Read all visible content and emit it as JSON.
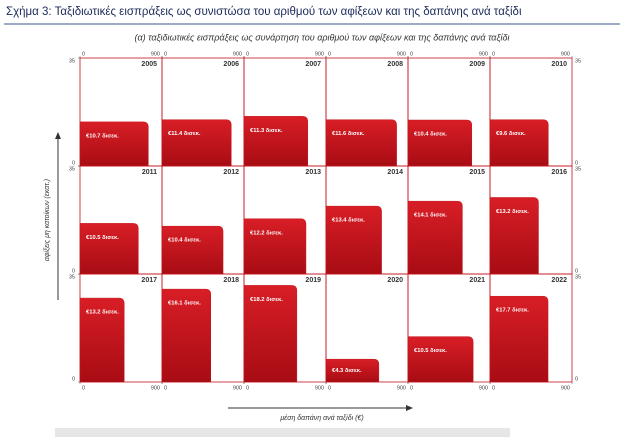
{
  "chart_data": {
    "type": "rect",
    "title": "Σχήμα 3: Ταξιδιωτικές εισπράξεις ως συνιστώσα του αριθμού των αφίξεων και της δαπάνης ανά ταξίδι",
    "subtitle": "(α) ταξιδιωτικές εισπράξεις ως συνάρτηση του αριθμού των αφίξεων και της δαπάνης ανά ταξίδι",
    "x_label": "μέση δαπάνη ανά ταξίδι (€)",
    "y_label": "αφίξεις μη κατοίκων (εκατ.)",
    "xlim": [
      0,
      900
    ],
    "ylim": [
      0,
      35
    ],
    "xticks": [
      0,
      900
    ],
    "yticks": [
      0,
      35
    ],
    "color": "#c4141c",
    "categories": [
      "2005",
      "2006",
      "2007",
      "2008",
      "2009",
      "2010",
      "2011",
      "2012",
      "2013",
      "2014",
      "2015",
      "2016",
      "2017",
      "2018",
      "2019",
      "2020",
      "2021",
      "2022"
    ],
    "x": [
      750,
      760,
      700,
      775,
      700,
      640,
      640,
      670,
      680,
      610,
      597,
      532,
      485,
      535,
      580,
      580,
      715,
      637
    ],
    "values": [
      14.3,
      15.0,
      16.1,
      15.0,
      14.9,
      15.0,
      16.4,
      15.5,
      17.9,
      22.0,
      23.6,
      24.8,
      27.2,
      30.1,
      31.3,
      7.4,
      14.7,
      27.8
    ],
    "receipts": {
      "values": [
        10.7,
        11.4,
        11.3,
        11.6,
        10.4,
        9.6,
        10.5,
        10.4,
        12.2,
        13.4,
        14.1,
        13.2,
        13.2,
        16.1,
        18.2,
        4.3,
        10.5,
        17.7
      ],
      "value_labels": [
        "€10.7 δισεκ.",
        "€11.4 δισεκ.",
        "€11.3 δισεκ.",
        "€11.6 δισεκ.",
        "€10.4 δισεκ.",
        "€9.6 δισεκ.",
        "€10.5 δισεκ.",
        "€10.4 δισεκ.",
        "€12.2 δισεκ.",
        "€13.4 δισεκ.",
        "€14.1 δισεκ.",
        "€13.2 δισεκ.",
        "€13.2 δισεκ.",
        "€16.1 δισεκ.",
        "€18.2 δισεκ.",
        "€4.3 δισεκ.",
        "€10.5 δισεκ.",
        "€17.7 δισεκ."
      ]
    }
  }
}
